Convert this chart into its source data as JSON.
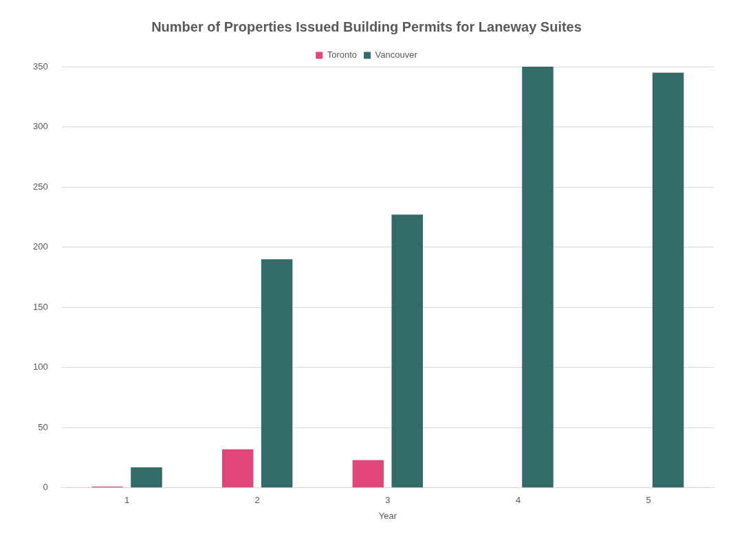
{
  "chart_data": {
    "type": "bar",
    "title": "Number of Properties Issued Building Permits for Laneway Suites",
    "xlabel": "Year",
    "categories": [
      "1",
      "2",
      "3",
      "4",
      "5"
    ],
    "series": [
      {
        "name": "Toronto",
        "color": "#e0457b",
        "values": [
          1,
          32,
          23,
          0,
          0
        ]
      },
      {
        "name": "Vancouver",
        "color": "#336b69",
        "values": [
          17,
          190,
          227,
          350,
          345
        ]
      }
    ],
    "ylim": [
      0,
      350
    ],
    "yticks": [
      0,
      50,
      100,
      150,
      200,
      250,
      300,
      350
    ],
    "grid": "y",
    "legend": "top"
  }
}
